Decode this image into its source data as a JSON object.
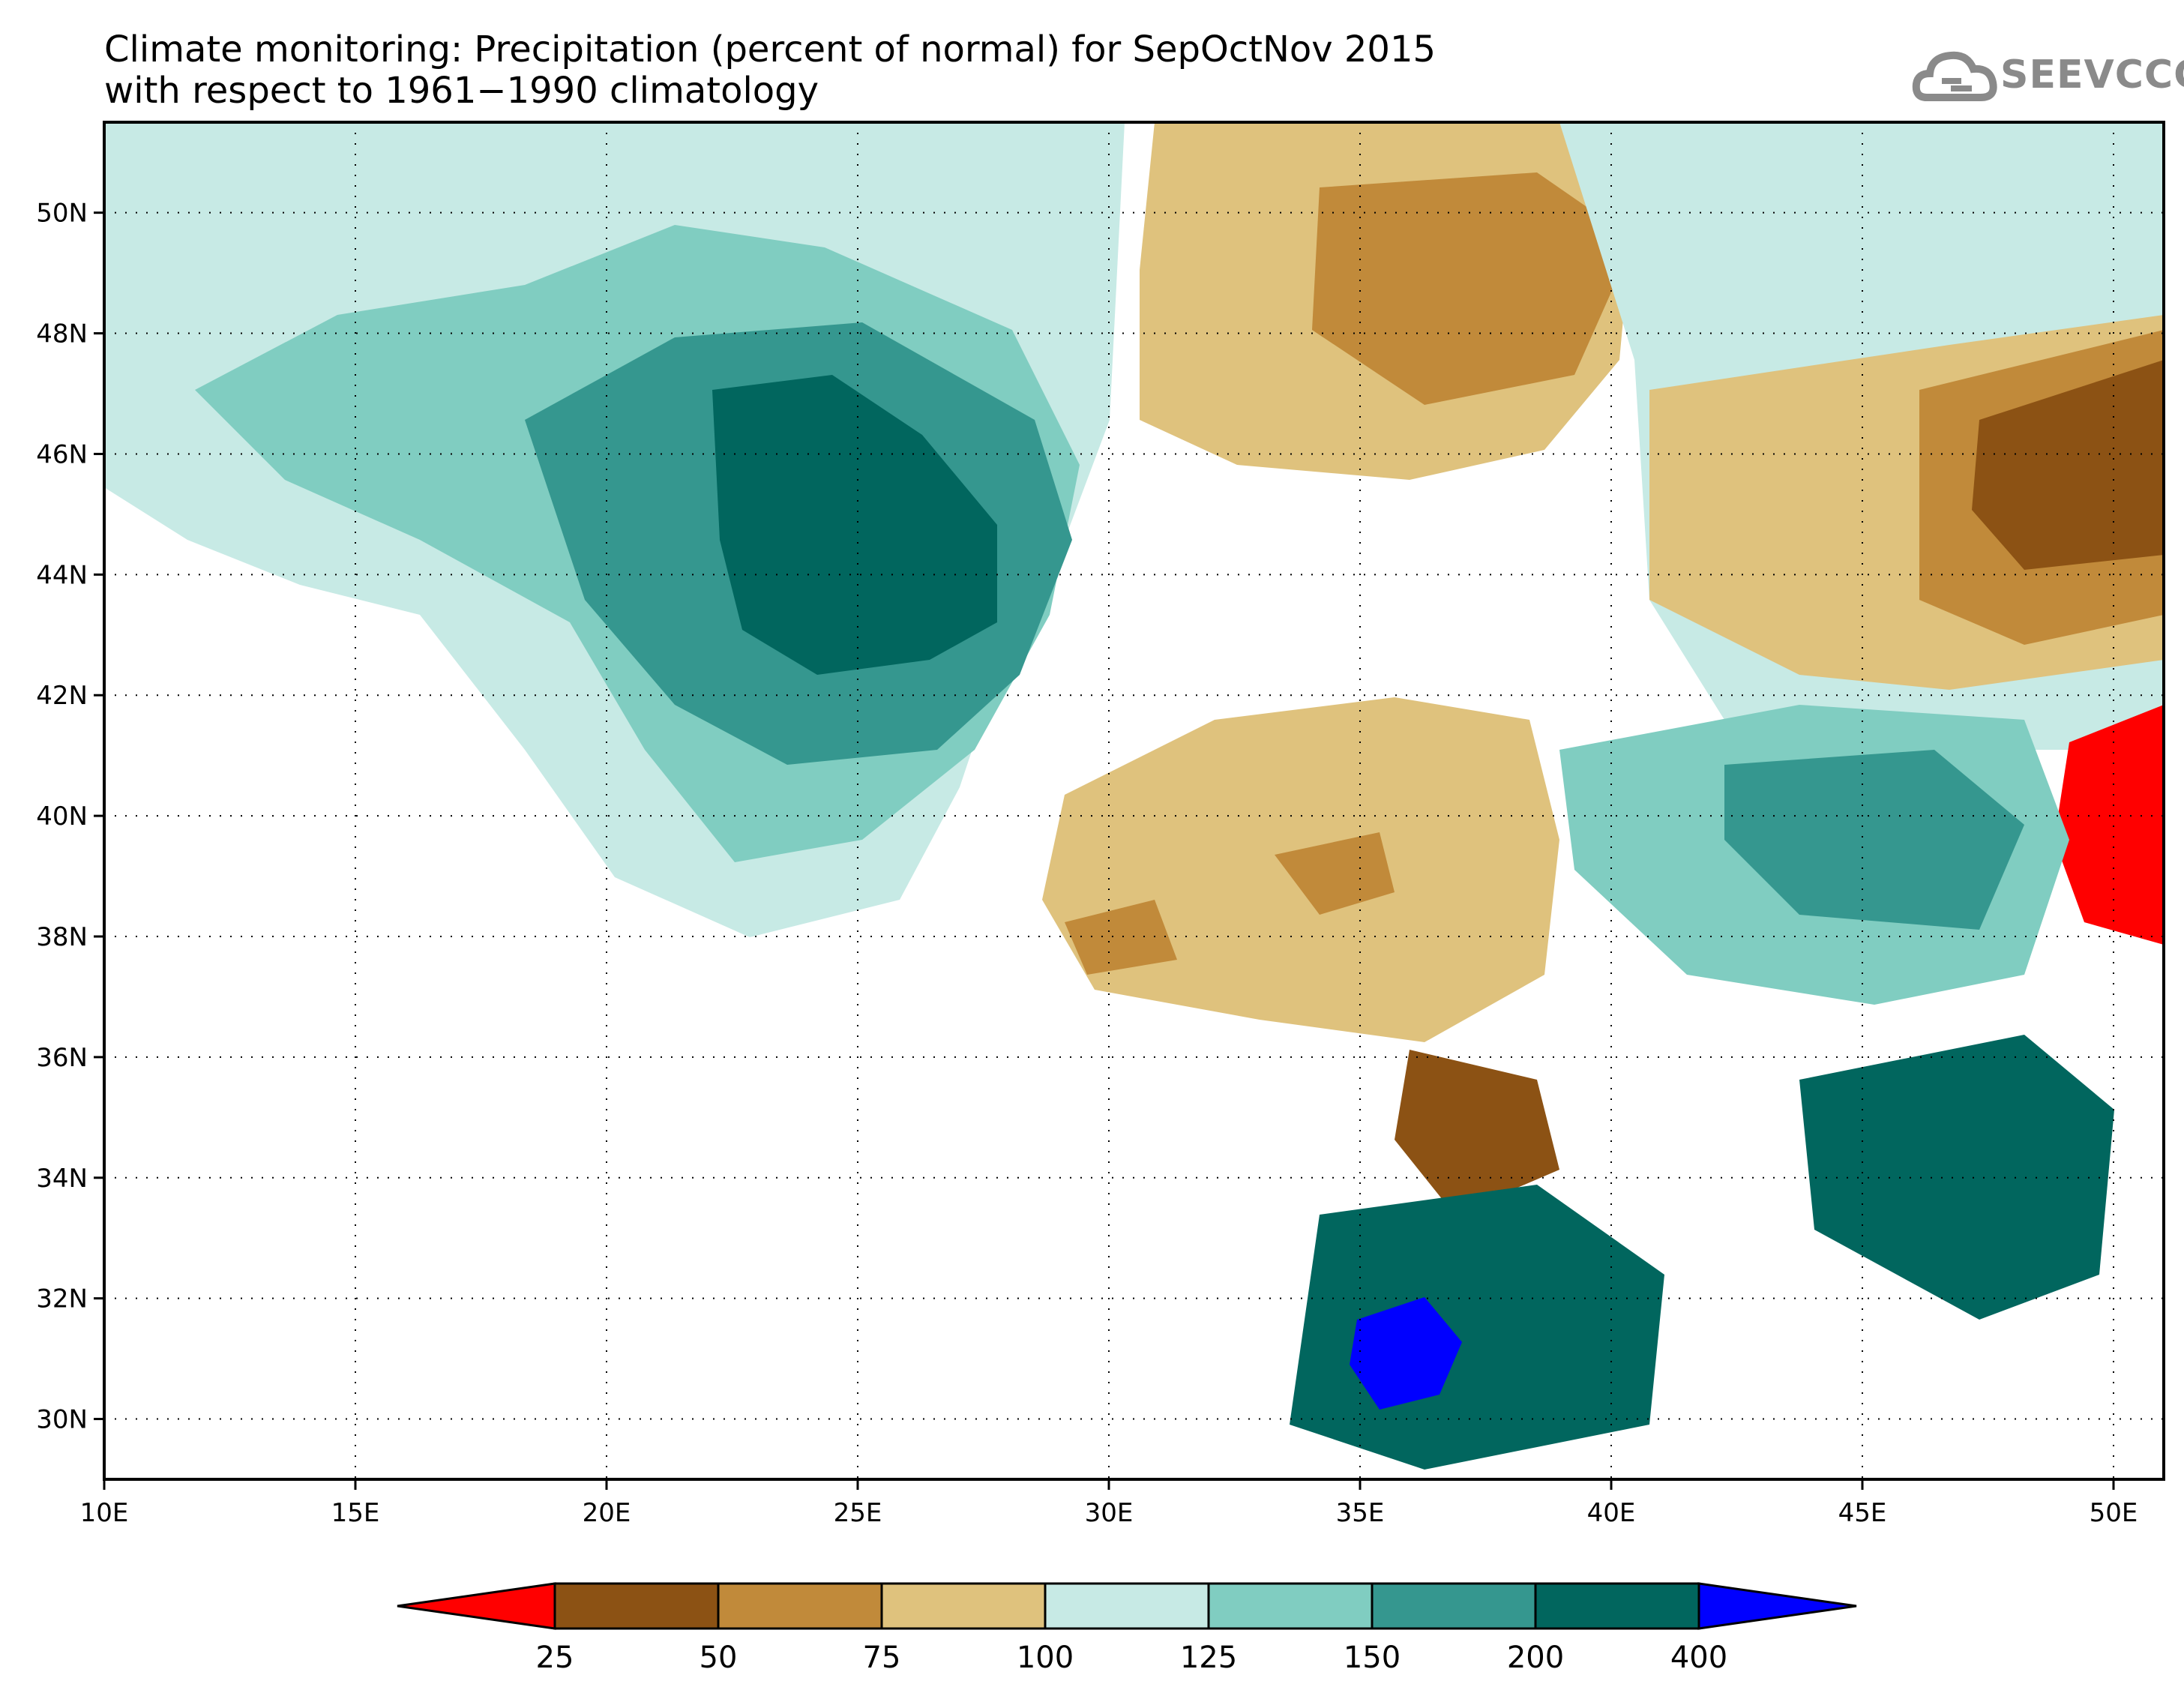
{
  "title": {
    "line1": "Climate monitoring: Precipitation (percent of normal) for SepOctNov 2015",
    "line2": "with respect to 1961−1990 climatology"
  },
  "logo": {
    "text": "SEEVCCC",
    "icon": "cloud-icon"
  },
  "map": {
    "lon_range": [
      10,
      51
    ],
    "lat_range": [
      29,
      51.5
    ],
    "x_ticks": [
      "10E",
      "15E",
      "20E",
      "25E",
      "30E",
      "35E",
      "40E",
      "45E",
      "50E"
    ],
    "y_ticks": [
      "30N",
      "32N",
      "34N",
      "36N",
      "38N",
      "40N",
      "42N",
      "44N",
      "46N",
      "48N",
      "50N"
    ],
    "grid": "dotted"
  },
  "colorbar": {
    "labels": [
      "25",
      "50",
      "75",
      "100",
      "125",
      "150",
      "200",
      "400"
    ],
    "colors": [
      "#ff0000",
      "#8c5214",
      "#c18a3a",
      "#dfc27d",
      "#c7eae5",
      "#80cdc1",
      "#35978f",
      "#01665e",
      "#0000ff"
    ]
  }
}
